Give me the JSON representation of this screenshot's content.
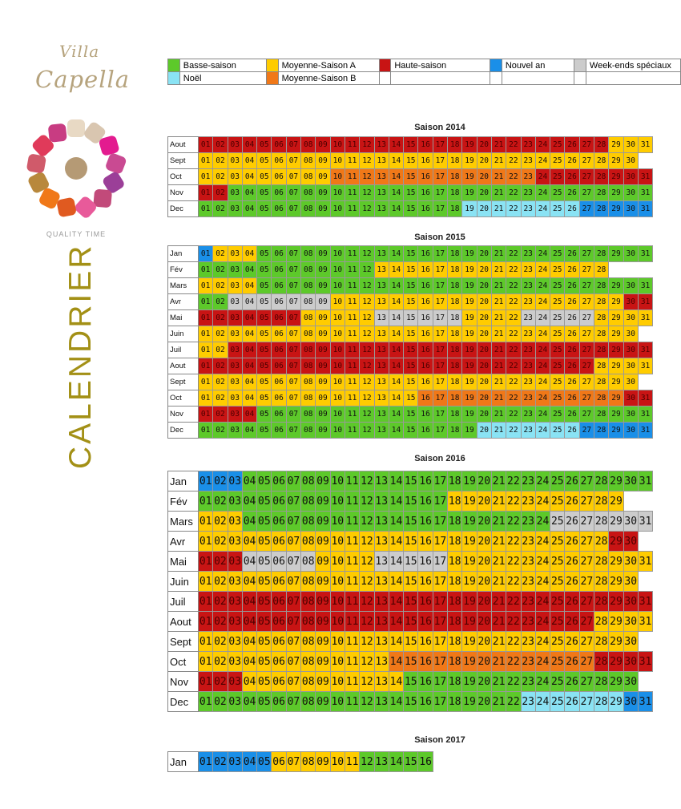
{
  "brand": {
    "line1": "Villa",
    "line2": "Capella",
    "tagline": "QUALITY TIME"
  },
  "page_title": "CALENDRIER",
  "legend": [
    [
      {
        "label": "Basse-saison",
        "color": "#5dc92a"
      },
      {
        "label": "Moyenne-Saison A",
        "color": "#ffcc00"
      },
      {
        "label": "Haute-saison",
        "color": "#c81414"
      },
      {
        "label": "Nouvel an",
        "color": "#1a8fe8"
      },
      {
        "label": "Week-ends spéciaux",
        "color": "#cccccc"
      }
    ],
    [
      {
        "label": "Noël",
        "color": "#8ae3f4"
      },
      {
        "label": "Moyenne-Saison B",
        "color": "#f07818"
      },
      {
        "label": "",
        "color": "#ffffff"
      },
      {
        "label": "",
        "color": "#ffffff"
      },
      {
        "label": "",
        "color": "#ffffff"
      }
    ]
  ],
  "codes": {
    "B": "Basse-saison",
    "A": "Moyenne-Saison A",
    "H": "Haute-saison",
    "N": "Nouvel an",
    "W": "Week-ends spéciaux",
    "C": "Noël",
    "M": "Moyenne-Saison B"
  },
  "seasons": [
    {
      "title": "Saison 2014",
      "size": "small",
      "months": [
        {
          "name": "Aout",
          "days": "HHHHHHHHHHHHHHHHHHHHHHHHHHHHAAA"
        },
        {
          "name": "Sept",
          "days": "AAAAAAAAAAAAAAAAAAAAAAAAAAAAAA"
        },
        {
          "name": "Oct",
          "days": "AAAAAAAAAMMMMMMMMMMMMMMHHHHHHHH"
        },
        {
          "name": "Nov",
          "days": "HHBBBBBBBBBBBBBBBBBBBBBBBBBBBBB"
        },
        {
          "name": "Dec",
          "days": "BBBBBBBBBBBBBBBBBBCCCCCCCCNNNNN"
        }
      ]
    },
    {
      "title": "Saison 2015",
      "size": "small",
      "months": [
        {
          "name": "Jan",
          "days": "NAAABBBBBBBBBBBBBBBBBBBBBBBBBBB"
        },
        {
          "name": "Fév",
          "days": "BBBBBBBBBBBBAAAAAAAAAAAAAAAA"
        },
        {
          "name": "Mars",
          "days": "AAAABBBBBBBBBBBBBBBBBBBBBBBBBBB"
        },
        {
          "name": "Avr",
          "days": "BBWWWWWWWAAAAAAAAAAAAAAAAAAAAHH"
        },
        {
          "name": "Mai",
          "days": "HHHHHHHAAAAAWWWWWWAAAAWWWWWAAAA"
        },
        {
          "name": "Juin",
          "days": "AAAAAAAAAAAAAAAAAAAAAAAAAAAAAA"
        },
        {
          "name": "Juil",
          "days": "AAHHHHHHHHHHHHHHHHHHHHHHHHHHHHH"
        },
        {
          "name": "Aout",
          "days": "HHHHHHHHHHHHHHHHHHHHHHHHHHHAAAA"
        },
        {
          "name": "Sept",
          "days": "AAAAAAAAAAAAAAAAAAAAAAAAAAAAAA"
        },
        {
          "name": "Oct",
          "days": "AAAAAAAAAAAAAAAMMMMMMMMMMMMMMHH"
        },
        {
          "name": "Nov",
          "days": "HHHHBBBBBBBBBBBBBBBBBBBBBBBBBBB"
        },
        {
          "name": "Dec",
          "days": "BBBBBBBBBBBBBBBBBBBCCCCCCCNNNNN"
        }
      ]
    },
    {
      "title": "Saison 2016",
      "size": "big",
      "months": [
        {
          "name": "Jan",
          "days": "NNNBBBBBBBBBBBBBBBBBBBBBBBBBBBB"
        },
        {
          "name": "Fév",
          "days": "BBBBBBBBBBBBBBBBBAAAAAAAAAAAA"
        },
        {
          "name": "Mars",
          "days": "AAABBBBBBBBBBBBBBBBBBBBBWWWWWWW"
        },
        {
          "name": "Avr",
          "days": "AAAAAAAAAAAAAAAAAAAAAAAAAAAAHH"
        },
        {
          "name": "Mai",
          "days": "HHHWWWWWAAAAWWWWWAAAAAAAAAAAAAA"
        },
        {
          "name": "Juin",
          "days": "AAAAAAAAAAAAAAAAAAAAAAAAAAAAAA"
        },
        {
          "name": "Juil",
          "days": "HHHHHHHHHHHHHHHHHHHHHHHHHHHHHHH"
        },
        {
          "name": "Aout",
          "days": "HHHHHHHHHHHHHHHHHHHHHHHHHHHAAAA"
        },
        {
          "name": "Sept",
          "days": "AAAAAAAAAAAAAAAAAAAAAAAAAAAAAA"
        },
        {
          "name": "Oct",
          "days": "AAAAAAAAAAAAAMMMMMMMMMMMMMMHHHH"
        },
        {
          "name": "Nov",
          "days": "HHHAAAAAAAAAAABBBBBBBBBBBBBBBB"
        },
        {
          "name": "Dec",
          "days": "BBBBBBBBBBBBBBBBBBBBBBCCCCCCCNN"
        }
      ]
    },
    {
      "title": "Saison 2017",
      "size": "big",
      "months": [
        {
          "name": "Jan",
          "days": "NNNNNAAAAAABBBBB"
        }
      ]
    }
  ]
}
